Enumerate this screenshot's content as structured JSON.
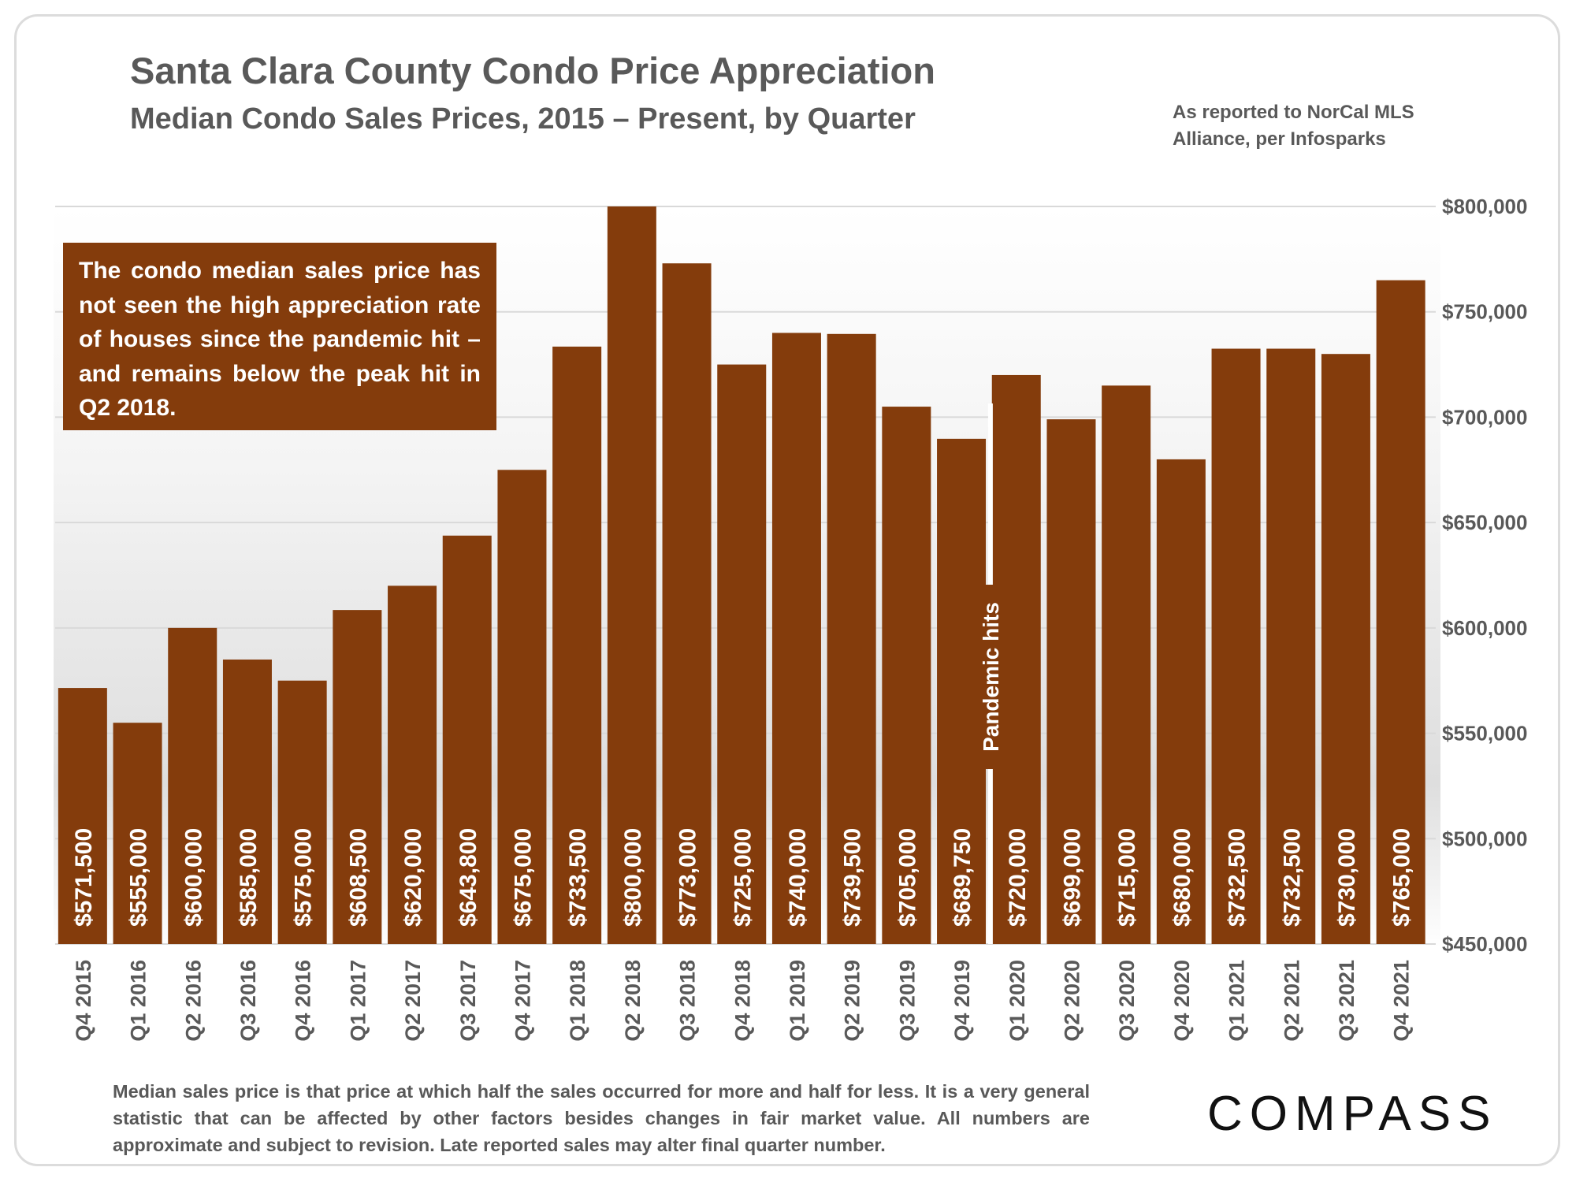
{
  "header": {
    "title": "Santa Clara County Condo Price Appreciation",
    "subtitle": "Median Condo Sales Prices, 2015 – Present, by Quarter",
    "source": "As reported to NorCal MLS Alliance, per Infosparks"
  },
  "callout": {
    "text": "The condo median sales price has not seen the high appreciation rate of houses since the pandemic hit – and remains below the peak hit in Q2 2018."
  },
  "footnote": "Median sales price is that price at which half the sales occurred for more and half for less. It is a very general statistic that can be affected by other factors besides changes in fair market value. All numbers are approximate and subject to revision. Late reported sales may alter final quarter number.",
  "logo": "COMPASS",
  "colors": {
    "bar": "#843c0c",
    "grid": "#d9d9d9",
    "text": "#595959"
  },
  "chart_data": {
    "type": "bar",
    "categories": [
      "Q4 2015",
      "Q1 2016",
      "Q2 2016",
      "Q3 2016",
      "Q4 2016",
      "Q1 2017",
      "Q2 2017",
      "Q3 2017",
      "Q4 2017",
      "Q1 2018",
      "Q2 2018",
      "Q3 2018",
      "Q4 2018",
      "Q1 2019",
      "Q2 2019",
      "Q3 2019",
      "Q4 2019",
      "Q1 2020",
      "Q2 2020",
      "Q3 2020",
      "Q4 2020",
      "Q1 2021",
      "Q2 2021",
      "Q3 2021",
      "Q4 2021"
    ],
    "values": [
      571500,
      555000,
      600000,
      585000,
      575000,
      608500,
      620000,
      643800,
      675000,
      733500,
      800000,
      773000,
      725000,
      740000,
      739500,
      705000,
      689750,
      720000,
      699000,
      715000,
      680000,
      732500,
      732500,
      730000,
      765000
    ],
    "value_labels": [
      "$571,500",
      "$555,000",
      "$600,000",
      "$585,000",
      "$575,000",
      "$608,500",
      "$620,000",
      "$643,800",
      "$675,000",
      "$733,500",
      "$800,000",
      "$773,000",
      "$725,000",
      "$740,000",
      "$739,500",
      "$705,000",
      "$689,750",
      "$720,000",
      "$699,000",
      "$715,000",
      "$680,000",
      "$732,500",
      "$732,500",
      "$730,000",
      "$765,000"
    ],
    "ylim": [
      450000,
      800000
    ],
    "y_ticks": [
      450000,
      500000,
      550000,
      600000,
      650000,
      700000,
      750000,
      800000
    ],
    "y_tick_labels": [
      "$450,000",
      "$500,000",
      "$550,000",
      "$600,000",
      "$650,000",
      "$700,000",
      "$750,000",
      "$800,000"
    ],
    "y_axis_side": "right",
    "grid": true,
    "annotation": {
      "text": "Pandemic hits",
      "between": [
        "Q4 2019",
        "Q1 2020"
      ]
    }
  }
}
